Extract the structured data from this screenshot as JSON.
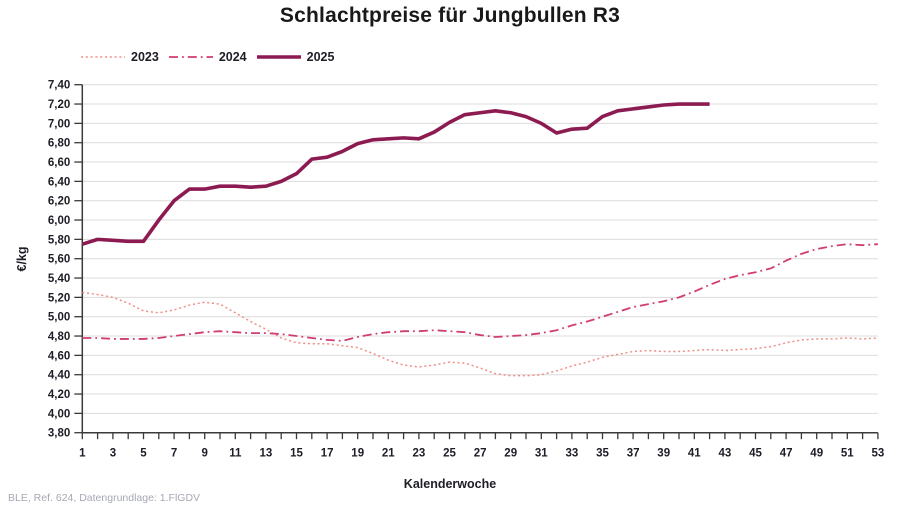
{
  "title": "Schlachtpreise für Jungbullen R3",
  "footer": "BLE, Ref. 624, Datengrundlage: 1.FlGDV",
  "colors": {
    "series_2023": "#ef8e87",
    "series_2024": "#d13d73",
    "series_2025": "#8c1b52",
    "gridline": "#dcdcdc",
    "axis": "#3a3a3a",
    "tick_text": "#1d1d26"
  },
  "chart_data": {
    "type": "line",
    "title": "Schlachtpreise für Jungbullen R3",
    "xlabel": "Kalenderwoche",
    "ylabel": "€/kg",
    "xlim": [
      1,
      53
    ],
    "ylim": [
      3.8,
      7.4
    ],
    "grid": true,
    "legend_position": "top-left",
    "xticks": [
      1,
      3,
      5,
      7,
      9,
      11,
      13,
      15,
      17,
      19,
      21,
      23,
      25,
      27,
      29,
      31,
      33,
      35,
      37,
      39,
      41,
      43,
      45,
      47,
      49,
      51,
      53
    ],
    "yticks": [
      "3,80",
      "4,00",
      "4,20",
      "4,40",
      "4,60",
      "4,80",
      "5,00",
      "5,20",
      "5,40",
      "5,60",
      "5,80",
      "6,00",
      "6,20",
      "6,40",
      "6,60",
      "6,80",
      "7,00",
      "7,20",
      "7,40"
    ],
    "x_unit": "Kalenderwoche",
    "series": [
      {
        "name": "2023",
        "style": "dotted",
        "color": "#ef8e87",
        "width": 1.5,
        "values": [
          5.25,
          5.23,
          5.2,
          5.14,
          5.06,
          5.04,
          5.07,
          5.12,
          5.15,
          5.13,
          5.04,
          4.95,
          4.87,
          4.78,
          4.73,
          4.72,
          4.72,
          4.7,
          4.68,
          4.62,
          4.55,
          4.5,
          4.48,
          4.5,
          4.53,
          4.52,
          4.47,
          4.41,
          4.39,
          4.39,
          4.4,
          4.44,
          4.49,
          4.53,
          4.58,
          4.61,
          4.64,
          4.65,
          4.64,
          4.64,
          4.65,
          4.66,
          4.65,
          4.66,
          4.67,
          4.69,
          4.73,
          4.76,
          4.77,
          4.77,
          4.78,
          4.77,
          4.78
        ]
      },
      {
        "name": "2024",
        "style": "dashdot",
        "color": "#d13d73",
        "width": 1.8,
        "values": [
          4.78,
          4.78,
          4.77,
          4.77,
          4.77,
          4.78,
          4.8,
          4.82,
          4.84,
          4.85,
          4.84,
          4.83,
          4.83,
          4.82,
          4.8,
          4.78,
          4.76,
          4.75,
          4.79,
          4.82,
          4.84,
          4.85,
          4.85,
          4.86,
          4.85,
          4.84,
          4.81,
          4.79,
          4.8,
          4.81,
          4.83,
          4.86,
          4.91,
          4.95,
          5.0,
          5.05,
          5.1,
          5.13,
          5.16,
          5.2,
          5.26,
          5.33,
          5.39,
          5.43,
          5.46,
          5.5,
          5.58,
          5.65,
          5.7,
          5.73,
          5.75,
          5.74,
          5.75
        ]
      },
      {
        "name": "2025",
        "style": "solid",
        "color": "#8c1b52",
        "width": 3.6,
        "values": [
          5.75,
          5.8,
          5.79,
          5.78,
          5.78,
          6.0,
          6.2,
          6.32,
          6.32,
          6.35,
          6.35,
          6.34,
          6.35,
          6.4,
          6.48,
          6.63,
          6.65,
          6.71,
          6.79,
          6.83,
          6.84,
          6.85,
          6.84,
          6.91,
          7.01,
          7.09,
          7.11,
          7.13,
          7.11,
          7.07,
          7.0,
          6.9,
          6.94,
          6.95,
          7.07,
          7.13,
          7.15,
          7.17,
          7.19,
          7.2,
          7.2,
          7.2
        ]
      }
    ]
  }
}
